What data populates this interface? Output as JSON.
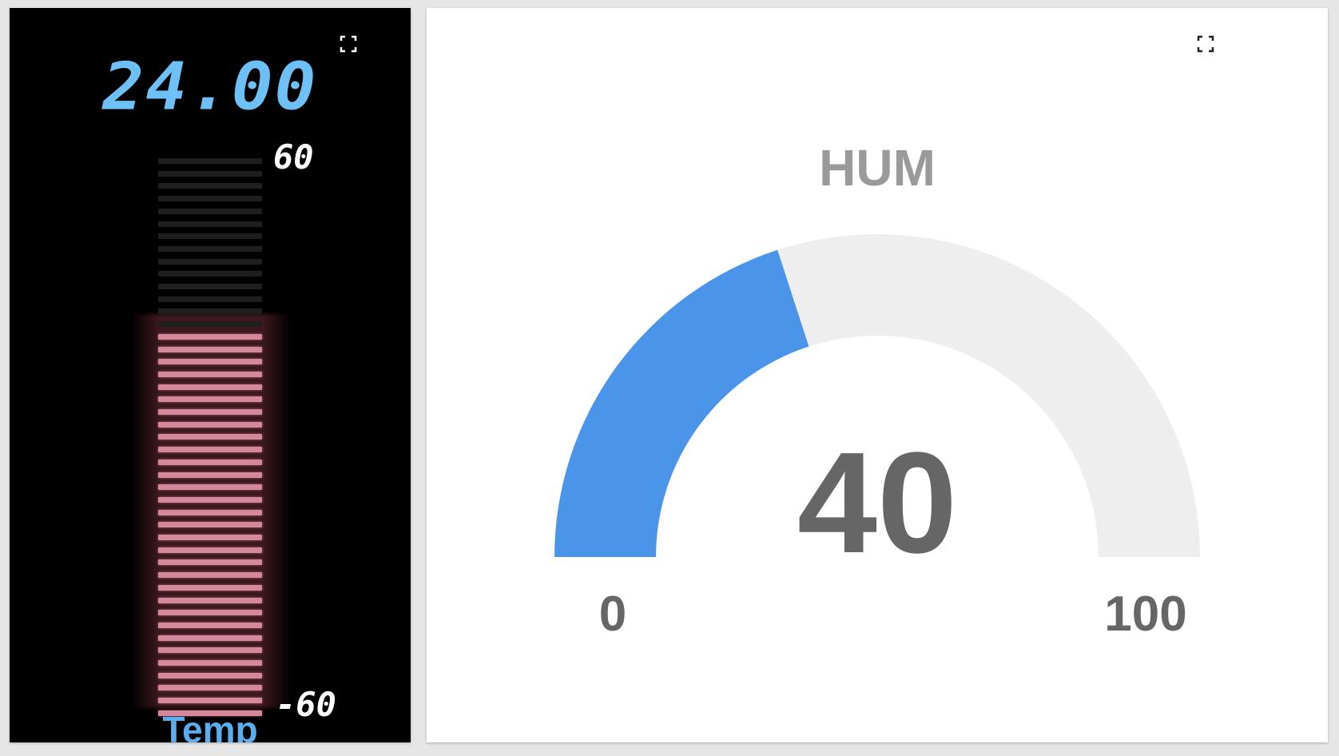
{
  "temp_widget": {
    "value": "24.00",
    "label": "Temp",
    "max_label": "60",
    "min_label": "-60",
    "value_number": 24,
    "min": -60,
    "max": 60,
    "background_color": "#000000",
    "value_color": "#6ec1f7",
    "label_color": "#5aaef0",
    "active_bar_color": "#d4889a",
    "inactive_bar_color": "#1f1f1f",
    "expand_icon": "fullscreen-icon"
  },
  "hum_widget": {
    "title": "HUM",
    "value": "40",
    "value_number": 40,
    "min_label": "0",
    "max_label": "100",
    "min": 0,
    "max": 100,
    "fill_color": "#4a94ea",
    "track_color": "#eeeeee",
    "expand_icon": "fullscreen-icon"
  }
}
